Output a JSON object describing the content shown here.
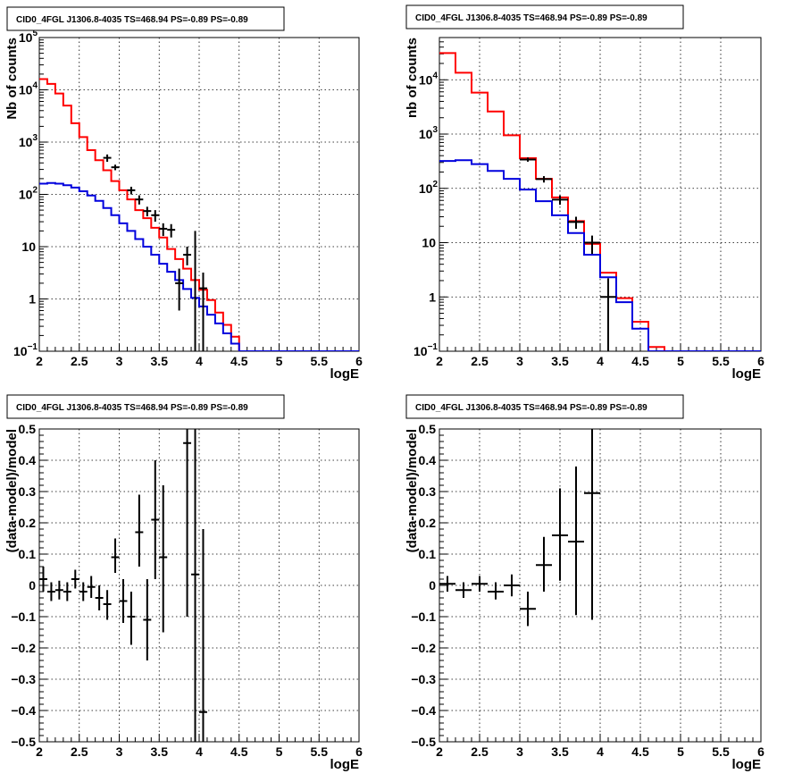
{
  "chart_data": [
    {
      "type": "line",
      "title": "CID0_4FGL J1306.8-4035 TS=468.94 PS=-0.89 PS=-0.89",
      "xlabel": "logE",
      "ylabel": "Nb of counts",
      "xlim": [
        2,
        6
      ],
      "ylim": [
        0.1,
        100000
      ],
      "yscale": "log",
      "xticks": [
        "2",
        "2.5",
        "3",
        "3.5",
        "4",
        "4.5",
        "5",
        "5.5",
        "6"
      ],
      "yticks": [
        {
          "value": 0.1,
          "label": "10",
          "exp": "−1"
        },
        {
          "value": 1,
          "label": "1",
          "exp": ""
        },
        {
          "value": 10,
          "label": "10",
          "exp": ""
        },
        {
          "value": 100,
          "label": "10",
          "exp": "2"
        },
        {
          "value": 1000,
          "label": "10",
          "exp": "3"
        },
        {
          "value": 10000,
          "label": "10",
          "exp": "4"
        },
        {
          "value": 100000,
          "label": "10",
          "exp": "5"
        }
      ],
      "grid": true,
      "series": [
        {
          "color": "#ff0000",
          "style": "step",
          "bin_edges": [
            2.0,
            2.1,
            2.2,
            2.3,
            2.4,
            2.5,
            2.6,
            2.7,
            2.8,
            2.9,
            3.0,
            3.1,
            3.2,
            3.3,
            3.4,
            3.5,
            3.6,
            3.7,
            3.8,
            3.9,
            4.0,
            4.1,
            4.2,
            4.3,
            4.4,
            4.5,
            4.6,
            4.7,
            4.8,
            4.9,
            5.0,
            5.1,
            5.2,
            5.3,
            5.4,
            5.5,
            5.6,
            5.7,
            5.8,
            5.9,
            6.0
          ],
          "values": [
            16000,
            13000,
            8500,
            5000,
            2300,
            1250,
            700,
            450,
            290,
            180,
            120,
            80,
            50,
            35,
            23,
            15,
            9,
            5.8,
            3.8,
            2.3,
            1.5,
            0.95,
            0.55,
            0.32,
            0.19,
            0.1,
            0.1,
            0.1,
            0.1,
            0.1,
            0.1,
            0.1,
            0.1,
            0.1,
            0.1,
            0.1,
            0.1,
            0.1,
            0.1,
            0.1
          ]
        },
        {
          "color": "#0000dd",
          "style": "step",
          "bin_edges": [
            2.0,
            2.1,
            2.2,
            2.3,
            2.4,
            2.5,
            2.6,
            2.7,
            2.8,
            2.9,
            3.0,
            3.1,
            3.2,
            3.3,
            3.4,
            3.5,
            3.6,
            3.7,
            3.8,
            3.9,
            4.0,
            4.1,
            4.2,
            4.3,
            4.4,
            4.5,
            4.6,
            4.7,
            4.8,
            4.9,
            5.0,
            5.1,
            5.2,
            5.3,
            5.4,
            5.5,
            5.6,
            5.7,
            5.8,
            5.9,
            6.0
          ],
          "values": [
            160,
            165,
            160,
            150,
            135,
            115,
            95,
            75,
            55,
            40,
            28,
            20,
            14,
            10,
            7,
            4.7,
            3.3,
            2.3,
            1.55,
            1.05,
            0.72,
            0.5,
            0.34,
            0.22,
            0.14,
            0.1,
            0.1,
            0.1,
            0.1,
            0.1,
            0.1,
            0.1,
            0.1,
            0.1,
            0.1,
            0.1,
            0.1,
            0.1,
            0.1,
            0.1
          ]
        },
        {
          "color": "#000000",
          "style": "errorbar",
          "points": [
            {
              "x": 2.85,
              "y": 500,
              "ylo": 420,
              "yhi": 580,
              "xerr": 0.05
            },
            {
              "x": 2.95,
              "y": 330,
              "ylo": 290,
              "yhi": 370,
              "xerr": 0.05
            },
            {
              "x": 3.15,
              "y": 120,
              "ylo": 100,
              "yhi": 140,
              "xerr": 0.05
            },
            {
              "x": 3.25,
              "y": 80,
              "ylo": 64,
              "yhi": 96,
              "xerr": 0.05
            },
            {
              "x": 3.35,
              "y": 48,
              "ylo": 38,
              "yhi": 58,
              "xerr": 0.05
            },
            {
              "x": 3.45,
              "y": 40,
              "ylo": 30,
              "yhi": 50,
              "xerr": 0.05
            },
            {
              "x": 3.55,
              "y": 22,
              "ylo": 16,
              "yhi": 28,
              "xerr": 0.05
            },
            {
              "x": 3.65,
              "y": 21,
              "ylo": 15,
              "yhi": 27,
              "xerr": 0.05
            },
            {
              "x": 3.75,
              "y": 2,
              "ylo": 0.6,
              "yhi": 3.8,
              "xerr": 0.05
            },
            {
              "x": 3.85,
              "y": 7,
              "ylo": 4.4,
              "yhi": 10,
              "xerr": 0.05
            },
            {
              "x": 3.95,
              "y": 0,
              "ylo": 0.1,
              "yhi": 20,
              "xerr": 0.05
            },
            {
              "x": 4.05,
              "y": 1.6,
              "ylo": 0.1,
              "yhi": 3.2,
              "xerr": 0.05
            }
          ]
        }
      ]
    },
    {
      "type": "line",
      "title": "CID0_4FGL J1306.8-4035 TS=468.94 PS=-0.89 PS=-0.89",
      "xlabel": "logE",
      "ylabel": "nb of counts",
      "xlim": [
        2,
        6
      ],
      "ylim": [
        0.1,
        60000
      ],
      "yscale": "log",
      "xticks": [
        "2",
        "2.5",
        "3",
        "3.5",
        "4",
        "4.5",
        "5",
        "5.5",
        "6"
      ],
      "yticks": [
        {
          "value": 0.1,
          "label": "10",
          "exp": "−1"
        },
        {
          "value": 1,
          "label": "1",
          "exp": ""
        },
        {
          "value": 10,
          "label": "10",
          "exp": ""
        },
        {
          "value": 100,
          "label": "10",
          "exp": "2"
        },
        {
          "value": 1000,
          "label": "10",
          "exp": "3"
        },
        {
          "value": 10000,
          "label": "10",
          "exp": "4"
        }
      ],
      "grid": true,
      "series": [
        {
          "color": "#ff0000",
          "style": "step",
          "bin_edges": [
            2.0,
            2.2,
            2.4,
            2.6,
            2.8,
            3.0,
            3.2,
            3.4,
            3.6,
            3.8,
            4.0,
            4.2,
            4.4,
            4.6,
            4.8,
            5.0,
            5.2,
            5.4,
            5.6,
            5.8,
            6.0
          ],
          "values": [
            31000,
            13500,
            5800,
            2600,
            950,
            360,
            150,
            68,
            25,
            9.5,
            2.8,
            0.95,
            0.35,
            0.12,
            0.1,
            0.1,
            0.1,
            0.1,
            0.1,
            0.1
          ]
        },
        {
          "color": "#0000dd",
          "style": "step",
          "bin_edges": [
            2.0,
            2.2,
            2.4,
            2.6,
            2.8,
            3.0,
            3.2,
            3.4,
            3.6,
            3.8,
            4.0,
            4.2,
            4.4,
            4.6,
            4.8,
            5.0,
            5.2,
            5.4,
            5.6,
            5.8,
            6.0
          ],
          "values": [
            320,
            330,
            280,
            210,
            150,
            95,
            58,
            32,
            15,
            6,
            2.3,
            0.8,
            0.26,
            0.1,
            0.1,
            0.1,
            0.1,
            0.1,
            0.1,
            0.1
          ]
        },
        {
          "color": "#000000",
          "style": "errorbar",
          "points": [
            {
              "x": 3.1,
              "y": 340,
              "ylo": 310,
              "yhi": 370,
              "xerr": 0.1
            },
            {
              "x": 3.3,
              "y": 148,
              "ylo": 128,
              "yhi": 168,
              "xerr": 0.1
            },
            {
              "x": 3.5,
              "y": 62,
              "ylo": 50,
              "yhi": 74,
              "xerr": 0.1
            },
            {
              "x": 3.7,
              "y": 24,
              "ylo": 18,
              "yhi": 30,
              "xerr": 0.1
            },
            {
              "x": 3.9,
              "y": 10,
              "ylo": 6.2,
              "yhi": 13.5,
              "xerr": 0.1
            },
            {
              "x": 4.1,
              "y": 1,
              "ylo": 0.1,
              "yhi": 2.2,
              "xerr": 0.1
            }
          ]
        }
      ]
    },
    {
      "type": "scatter",
      "title": "CID0_4FGL J1306.8-4035 TS=468.94 PS=-0.89 PS=-0.89",
      "xlabel": "logE",
      "ylabel": "(data-model)/model",
      "xlim": [
        2,
        6
      ],
      "ylim": [
        -0.5,
        0.5
      ],
      "yscale": "linear",
      "xticks": [
        "2",
        "2.5",
        "3",
        "3.5",
        "4",
        "4.5",
        "5",
        "5.5",
        "6"
      ],
      "yticks": [
        {
          "value": -0.5,
          "label": "−0.5"
        },
        {
          "value": -0.4,
          "label": "−0.4"
        },
        {
          "value": -0.3,
          "label": "−0.3"
        },
        {
          "value": -0.2,
          "label": "−0.2"
        },
        {
          "value": -0.1,
          "label": "−0.1"
        },
        {
          "value": 0,
          "label": "0"
        },
        {
          "value": 0.1,
          "label": "0.1"
        },
        {
          "value": 0.2,
          "label": "0.2"
        },
        {
          "value": 0.3,
          "label": "0.3"
        },
        {
          "value": 0.4,
          "label": "0.4"
        },
        {
          "value": 0.5,
          "label": "0.5"
        }
      ],
      "grid": true,
      "series": [
        {
          "color": "#000000",
          "style": "errorbar",
          "points": [
            {
              "x": 2.05,
              "y": 0.02,
              "ylo": -0.02,
              "yhi": 0.06,
              "xerr": 0.05
            },
            {
              "x": 2.15,
              "y": -0.02,
              "ylo": -0.05,
              "yhi": 0.01,
              "xerr": 0.05
            },
            {
              "x": 2.25,
              "y": -0.015,
              "ylo": -0.045,
              "yhi": 0.015,
              "xerr": 0.05
            },
            {
              "x": 2.35,
              "y": -0.02,
              "ylo": -0.05,
              "yhi": 0.01,
              "xerr": 0.05
            },
            {
              "x": 2.45,
              "y": 0.02,
              "ylo": -0.01,
              "yhi": 0.05,
              "xerr": 0.05
            },
            {
              "x": 2.55,
              "y": -0.02,
              "ylo": -0.05,
              "yhi": 0.01,
              "xerr": 0.05
            },
            {
              "x": 2.65,
              "y": -0.005,
              "ylo": -0.04,
              "yhi": 0.03,
              "xerr": 0.05
            },
            {
              "x": 2.75,
              "y": -0.04,
              "ylo": -0.08,
              "yhi": 0.0,
              "xerr": 0.05
            },
            {
              "x": 2.85,
              "y": -0.06,
              "ylo": -0.11,
              "yhi": -0.015,
              "xerr": 0.05
            },
            {
              "x": 2.95,
              "y": 0.09,
              "ylo": 0.04,
              "yhi": 0.15,
              "xerr": 0.05
            },
            {
              "x": 3.05,
              "y": -0.05,
              "ylo": -0.12,
              "yhi": 0.02,
              "xerr": 0.05
            },
            {
              "x": 3.15,
              "y": -0.1,
              "ylo": -0.19,
              "yhi": -0.02,
              "xerr": 0.05
            },
            {
              "x": 3.25,
              "y": 0.17,
              "ylo": 0.06,
              "yhi": 0.29,
              "xerr": 0.05
            },
            {
              "x": 3.35,
              "y": -0.11,
              "ylo": -0.24,
              "yhi": 0.02,
              "xerr": 0.05
            },
            {
              "x": 3.45,
              "y": 0.21,
              "ylo": 0.02,
              "yhi": 0.4,
              "xerr": 0.05
            },
            {
              "x": 3.55,
              "y": 0.09,
              "ylo": -0.15,
              "yhi": 0.32,
              "xerr": 0.05
            },
            {
              "x": 3.85,
              "y": 0.455,
              "ylo": -0.1,
              "yhi": 0.5,
              "xerr": 0.05
            },
            {
              "x": 3.95,
              "y": 0.035,
              "ylo": -0.5,
              "yhi": 0.5,
              "xerr": 0.05
            },
            {
              "x": 4.05,
              "y": -0.405,
              "ylo": -0.5,
              "yhi": 0.18,
              "xerr": 0.05
            }
          ]
        }
      ]
    },
    {
      "type": "scatter",
      "title": "CID0_4FGL J1306.8-4035 TS=468.94 PS=-0.89 PS=-0.89",
      "xlabel": "logE",
      "ylabel": "(data-model)/model",
      "xlim": [
        2,
        6
      ],
      "ylim": [
        -0.5,
        0.5
      ],
      "yscale": "linear",
      "xticks": [
        "2",
        "2.5",
        "3",
        "3.5",
        "4",
        "4.5",
        "5",
        "5.5",
        "6"
      ],
      "yticks": [
        {
          "value": -0.5,
          "label": "−0.5"
        },
        {
          "value": -0.4,
          "label": "−0.4"
        },
        {
          "value": -0.3,
          "label": "−0.3"
        },
        {
          "value": -0.2,
          "label": "−0.2"
        },
        {
          "value": -0.1,
          "label": "−0.1"
        },
        {
          "value": 0,
          "label": "0"
        },
        {
          "value": 0.1,
          "label": "0.1"
        },
        {
          "value": 0.2,
          "label": "0.2"
        },
        {
          "value": 0.3,
          "label": "0.3"
        },
        {
          "value": 0.4,
          "label": "0.4"
        },
        {
          "value": 0.5,
          "label": "0.5"
        }
      ],
      "grid": true,
      "series": [
        {
          "color": "#000000",
          "style": "errorbar",
          "points": [
            {
              "x": 2.1,
              "y": 0.005,
              "ylo": -0.02,
              "yhi": 0.03,
              "xerr": 0.1
            },
            {
              "x": 2.3,
              "y": -0.015,
              "ylo": -0.04,
              "yhi": 0.01,
              "xerr": 0.1
            },
            {
              "x": 2.5,
              "y": 0.005,
              "ylo": -0.02,
              "yhi": 0.03,
              "xerr": 0.1
            },
            {
              "x": 2.7,
              "y": -0.02,
              "ylo": -0.045,
              "yhi": 0.01,
              "xerr": 0.1
            },
            {
              "x": 2.9,
              "y": 0.0,
              "ylo": -0.035,
              "yhi": 0.035,
              "xerr": 0.1
            },
            {
              "x": 3.1,
              "y": -0.075,
              "ylo": -0.13,
              "yhi": -0.02,
              "xerr": 0.1
            },
            {
              "x": 3.3,
              "y": 0.065,
              "ylo": -0.02,
              "yhi": 0.155,
              "xerr": 0.1
            },
            {
              "x": 3.5,
              "y": 0.16,
              "ylo": 0.015,
              "yhi": 0.31,
              "xerr": 0.1
            },
            {
              "x": 3.7,
              "y": 0.14,
              "ylo": -0.095,
              "yhi": 0.38,
              "xerr": 0.1
            },
            {
              "x": 3.9,
              "y": 0.295,
              "ylo": -0.11,
              "yhi": 0.5,
              "xerr": 0.1
            }
          ]
        }
      ]
    }
  ]
}
